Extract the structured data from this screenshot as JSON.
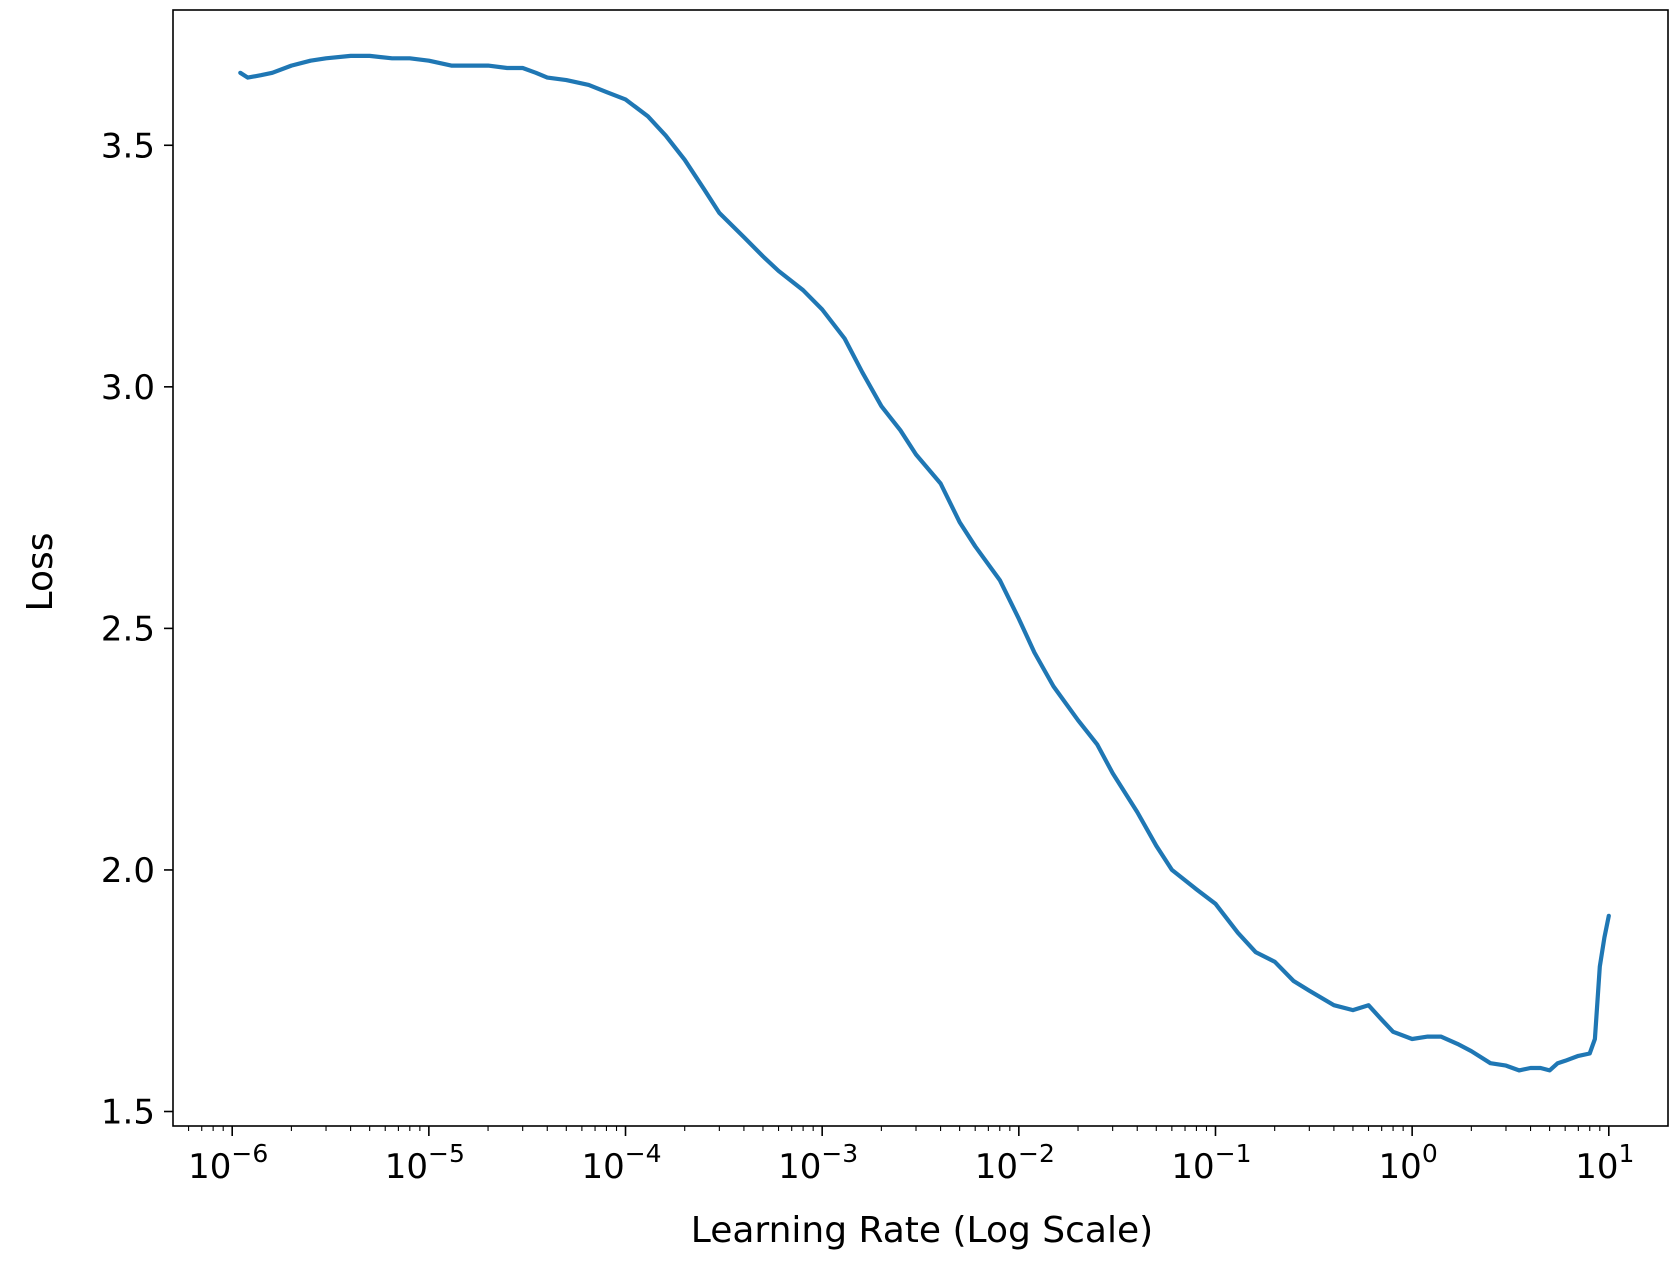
{
  "chart_data": {
    "type": "line",
    "xlabel": "Learning Rate (Log Scale)",
    "ylabel": "Loss",
    "xscale": "log",
    "xlim": [
      5e-07,
      20
    ],
    "ylim": [
      1.47,
      3.78
    ],
    "grid": false,
    "line_color": "#1f77b4",
    "x_major_ticks": [
      {
        "value": 1e-06,
        "base": "10",
        "exp": "−6"
      },
      {
        "value": 1e-05,
        "base": "10",
        "exp": "−5"
      },
      {
        "value": 0.0001,
        "base": "10",
        "exp": "−4"
      },
      {
        "value": 0.001,
        "base": "10",
        "exp": "−3"
      },
      {
        "value": 0.01,
        "base": "10",
        "exp": "−2"
      },
      {
        "value": 0.1,
        "base": "10",
        "exp": "−1"
      },
      {
        "value": 1,
        "base": "10",
        "exp": "0"
      },
      {
        "value": 10,
        "base": "10",
        "exp": "1"
      }
    ],
    "y_ticks": [
      {
        "value": 1.5,
        "label": "1.5"
      },
      {
        "value": 2.0,
        "label": "2.0"
      },
      {
        "value": 2.5,
        "label": "2.5"
      },
      {
        "value": 3.0,
        "label": "3.0"
      },
      {
        "value": 3.5,
        "label": "3.5"
      }
    ],
    "series": [
      {
        "x": [
          1.1e-06,
          1.2e-06,
          1.4e-06,
          1.6e-06,
          2e-06,
          2.5e-06,
          3e-06,
          4e-06,
          5e-06,
          6.5e-06,
          8e-06,
          1e-05,
          1.3e-05,
          1.6e-05,
          2e-05,
          2.5e-05,
          3e-05,
          3.5e-05,
          4e-05,
          5e-05,
          6.5e-05,
          8e-05,
          0.0001,
          0.00013,
          0.00016,
          0.0002,
          0.00025,
          0.0003,
          0.0004,
          0.0005,
          0.0006,
          0.0008,
          0.001,
          0.0013,
          0.0016,
          0.002,
          0.0025,
          0.003,
          0.004,
          0.005,
          0.006,
          0.008,
          0.01,
          0.012,
          0.015,
          0.02,
          0.025,
          0.03,
          0.04,
          0.05,
          0.06,
          0.08,
          0.1,
          0.13,
          0.16,
          0.2,
          0.25,
          0.3,
          0.4,
          0.5,
          0.6,
          0.7,
          0.8,
          1.0,
          1.2,
          1.4,
          1.7,
          2.0,
          2.5,
          3.0,
          3.5,
          4.0,
          4.5,
          5.0,
          5.5,
          6.0,
          7.0,
          8.0,
          8.5,
          9.0,
          9.5,
          10.0
        ],
        "y": [
          3.65,
          3.64,
          3.645,
          3.65,
          3.665,
          3.675,
          3.68,
          3.685,
          3.685,
          3.68,
          3.68,
          3.675,
          3.665,
          3.665,
          3.665,
          3.66,
          3.66,
          3.65,
          3.64,
          3.635,
          3.625,
          3.61,
          3.595,
          3.56,
          3.52,
          3.47,
          3.41,
          3.36,
          3.31,
          3.27,
          3.24,
          3.2,
          3.16,
          3.1,
          3.03,
          2.96,
          2.91,
          2.86,
          2.8,
          2.72,
          2.67,
          2.6,
          2.52,
          2.45,
          2.38,
          2.31,
          2.26,
          2.2,
          2.12,
          2.05,
          2.0,
          1.96,
          1.93,
          1.87,
          1.83,
          1.81,
          1.77,
          1.75,
          1.72,
          1.71,
          1.72,
          1.69,
          1.665,
          1.65,
          1.655,
          1.655,
          1.64,
          1.625,
          1.6,
          1.595,
          1.585,
          1.59,
          1.59,
          1.585,
          1.6,
          1.605,
          1.615,
          1.62,
          1.65,
          1.8,
          1.86,
          1.905
        ]
      }
    ]
  }
}
